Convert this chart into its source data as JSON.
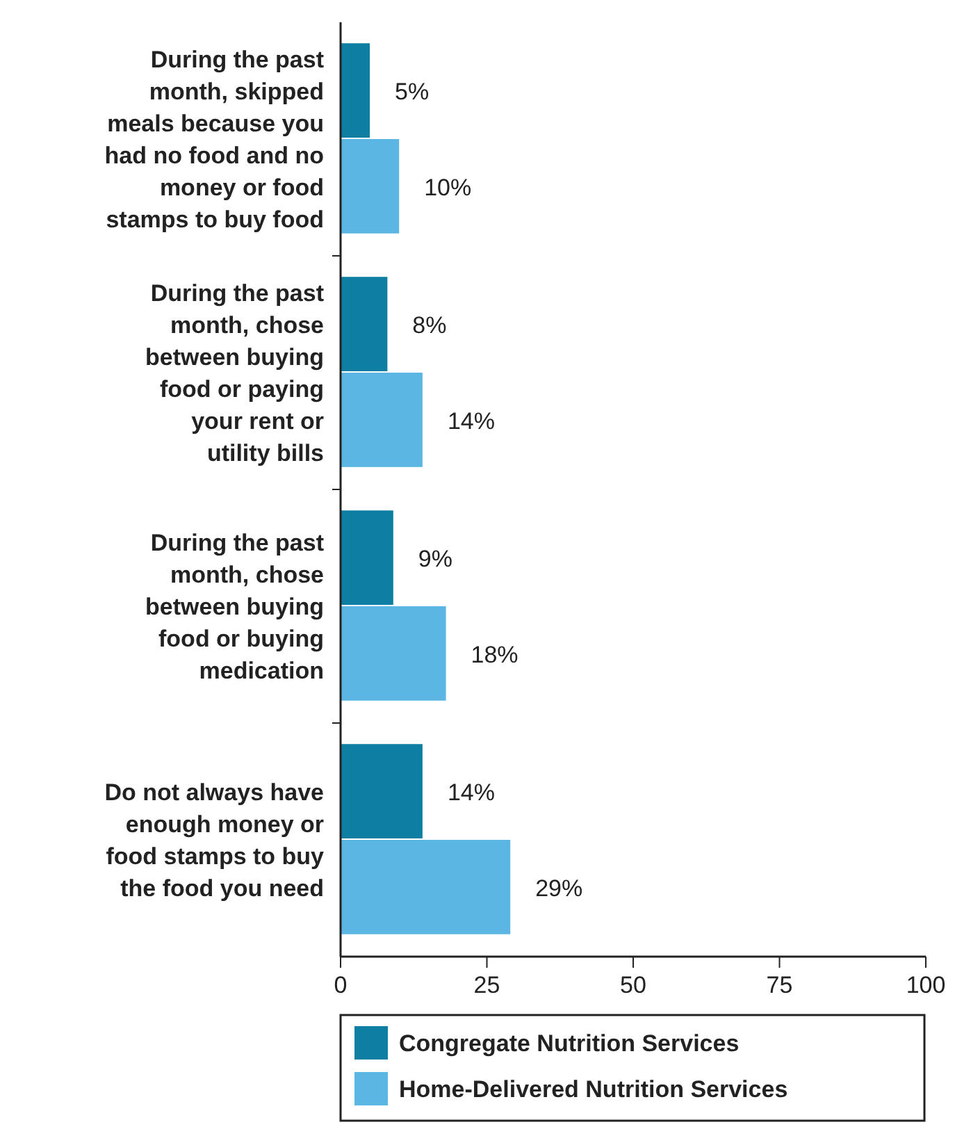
{
  "chart_data": {
    "type": "bar",
    "orientation": "horizontal",
    "categories": [
      "During the past month, skipped meals because you had no food and no money or food stamps to buy food",
      "During the past month, chose between buying food or paying your rent or utility bills",
      "During the past month, chose between buying food or buying medication",
      "Do not always have enough money or food stamps to buy the food you need"
    ],
    "series": [
      {
        "name": "Congregate Nutrition Services",
        "color": "#0f7ea3",
        "values": [
          5,
          8,
          9,
          14
        ],
        "value_labels": [
          "5%",
          "8%",
          "9%",
          "14%"
        ]
      },
      {
        "name": "Home-Delivered Nutrition Services",
        "color": "#5bb6e3",
        "values": [
          10,
          14,
          18,
          29
        ],
        "value_labels": [
          "10%",
          "14%",
          "18%",
          "29%"
        ]
      }
    ],
    "xlim": [
      0,
      100
    ],
    "xticks": [
      0,
      25,
      50,
      75,
      100
    ],
    "legend": "bottom",
    "grid": false
  }
}
